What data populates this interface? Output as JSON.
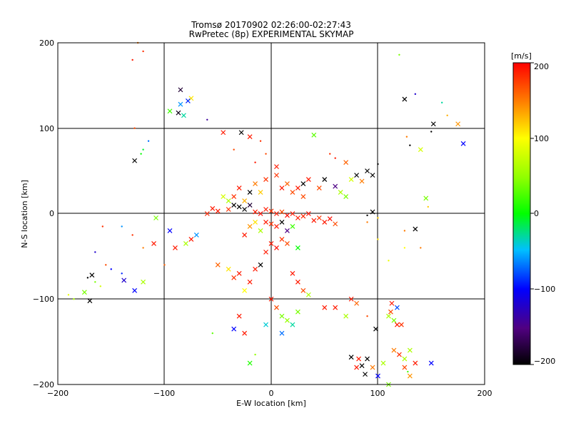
{
  "chart_data": {
    "type": "scatter",
    "title": "Tromsø 20170902 02:26:00-02:27:43",
    "subtitle": "RwPretec (8p) EXPERIMENTAL SKYMAP",
    "xlabel": "E-W location [km]",
    "ylabel": "N-S location [km]",
    "xlim": [
      -200,
      200
    ],
    "ylim": [
      -200,
      200
    ],
    "xticks": [
      "−200",
      "−100",
      "0",
      "100",
      "200"
    ],
    "yticks": [
      "−200",
      "−100",
      "0",
      "100",
      "200"
    ],
    "grid": true,
    "colorbar": {
      "label": "[m/s]",
      "range": [
        -200,
        200
      ],
      "ticks": [
        "200",
        "100",
        "0",
        "−100",
        "−200"
      ],
      "colormap": "black-purple-blue-cyan-green-yellow-orange-red"
    },
    "marker_note": "x markers = strong echoes, dots = weak echoes, colored by line-of-sight velocity",
    "points": [
      [
        -85,
        145,
        -180,
        "x"
      ],
      [
        -87,
        118,
        -190,
        "x"
      ],
      [
        -85,
        128,
        -60,
        "x"
      ],
      [
        -82,
        115,
        -30,
        "x"
      ],
      [
        -75,
        135,
        110,
        "x"
      ],
      [
        -95,
        120,
        20,
        "x"
      ],
      [
        -78,
        132,
        -90,
        "x"
      ],
      [
        -60,
        110,
        -140,
        "d"
      ],
      [
        -128,
        62,
        -200,
        "x"
      ],
      [
        -125,
        200,
        150,
        "d"
      ],
      [
        -120,
        190,
        180,
        "d"
      ],
      [
        -130,
        180,
        190,
        "d"
      ],
      [
        -122,
        70,
        0,
        "d"
      ],
      [
        -120,
        75,
        -10,
        "d"
      ],
      [
        -115,
        85,
        -70,
        "d"
      ],
      [
        125,
        134,
        -200,
        "x"
      ],
      [
        135,
        140,
        -120,
        "d"
      ],
      [
        152,
        105,
        -200,
        "x"
      ],
      [
        150,
        96,
        -200,
        "d"
      ],
      [
        160,
        130,
        -30,
        "d"
      ],
      [
        165,
        115,
        130,
        "d"
      ],
      [
        175,
        105,
        140,
        "x"
      ],
      [
        180,
        82,
        -100,
        "x"
      ],
      [
        120,
        186,
        40,
        "d"
      ],
      [
        127,
        90,
        150,
        "d"
      ],
      [
        130,
        80,
        -200,
        "d"
      ],
      [
        140,
        75,
        80,
        "x"
      ],
      [
        145,
        18,
        40,
        "x"
      ],
      [
        147,
        8,
        120,
        "d"
      ],
      [
        125,
        -20,
        150,
        "d"
      ],
      [
        135,
        -18,
        -200,
        "x"
      ],
      [
        -45,
        95,
        190,
        "x"
      ],
      [
        -28,
        95,
        -200,
        "x"
      ],
      [
        -20,
        90,
        190,
        "x"
      ],
      [
        -10,
        85,
        180,
        "d"
      ],
      [
        -5,
        70,
        170,
        "d"
      ],
      [
        -35,
        75,
        170,
        "d"
      ],
      [
        -15,
        60,
        190,
        "d"
      ],
      [
        5,
        55,
        190,
        "x"
      ],
      [
        40,
        92,
        30,
        "x"
      ],
      [
        55,
        70,
        180,
        "d"
      ],
      [
        60,
        65,
        190,
        "d"
      ],
      [
        70,
        60,
        160,
        "x"
      ],
      [
        80,
        45,
        -200,
        "x"
      ],
      [
        90,
        50,
        -200,
        "x"
      ],
      [
        95,
        45,
        -200,
        "x"
      ],
      [
        100,
        58,
        -200,
        "d"
      ],
      [
        85,
        38,
        150,
        "x"
      ],
      [
        75,
        40,
        80,
        "x"
      ],
      [
        70,
        20,
        40,
        "x"
      ],
      [
        65,
        25,
        60,
        "x"
      ],
      [
        50,
        40,
        -200,
        "x"
      ],
      [
        60,
        32,
        -150,
        "x"
      ],
      [
        45,
        30,
        170,
        "x"
      ],
      [
        30,
        20,
        170,
        "x"
      ],
      [
        -35,
        10,
        -200,
        "x"
      ],
      [
        -30,
        8,
        -200,
        "x"
      ],
      [
        -25,
        5,
        -200,
        "x"
      ],
      [
        -20,
        10,
        -180,
        "x"
      ],
      [
        -40,
        5,
        180,
        "x"
      ],
      [
        -50,
        3,
        190,
        "x"
      ],
      [
        -55,
        6,
        190,
        "x"
      ],
      [
        -60,
        0,
        185,
        "x"
      ],
      [
        -15,
        2,
        190,
        "x"
      ],
      [
        -10,
        0,
        195,
        "x"
      ],
      [
        -5,
        5,
        190,
        "x"
      ],
      [
        0,
        3,
        180,
        "x"
      ],
      [
        5,
        0,
        190,
        "x"
      ],
      [
        10,
        2,
        170,
        "x"
      ],
      [
        15,
        -2,
        195,
        "x"
      ],
      [
        20,
        0,
        190,
        "x"
      ],
      [
        25,
        -5,
        190,
        "x"
      ],
      [
        30,
        -3,
        185,
        "x"
      ],
      [
        35,
        0,
        195,
        "x"
      ],
      [
        40,
        -8,
        190,
        "x"
      ],
      [
        45,
        -5,
        180,
        "x"
      ],
      [
        50,
        -10,
        190,
        "x"
      ],
      [
        55,
        -6,
        195,
        "x"
      ],
      [
        60,
        -12,
        170,
        "x"
      ],
      [
        -5,
        -10,
        190,
        "x"
      ],
      [
        0,
        -12,
        180,
        "x"
      ],
      [
        5,
        -15,
        190,
        "x"
      ],
      [
        10,
        -10,
        -200,
        "x"
      ],
      [
        15,
        -20,
        -150,
        "x"
      ],
      [
        20,
        -15,
        20,
        "x"
      ],
      [
        -10,
        -20,
        60,
        "x"
      ],
      [
        -15,
        -10,
        110,
        "x"
      ],
      [
        -20,
        -15,
        140,
        "x"
      ],
      [
        -25,
        -25,
        190,
        "x"
      ],
      [
        0,
        -35,
        190,
        "x"
      ],
      [
        5,
        -40,
        195,
        "x"
      ],
      [
        10,
        -30,
        180,
        "x"
      ],
      [
        15,
        -35,
        170,
        "x"
      ],
      [
        -5,
        -45,
        190,
        "x"
      ],
      [
        25,
        -40,
        0,
        "x"
      ],
      [
        -30,
        -70,
        190,
        "x"
      ],
      [
        -35,
        -75,
        180,
        "x"
      ],
      [
        -40,
        -65,
        110,
        "x"
      ],
      [
        -50,
        -60,
        160,
        "x"
      ],
      [
        -10,
        -60,
        -200,
        "x"
      ],
      [
        -15,
        -65,
        190,
        "x"
      ],
      [
        -20,
        -80,
        190,
        "x"
      ],
      [
        -25,
        -90,
        100,
        "x"
      ],
      [
        20,
        -70,
        190,
        "x"
      ],
      [
        25,
        -80,
        190,
        "x"
      ],
      [
        30,
        -90,
        170,
        "x"
      ],
      [
        35,
        -95,
        60,
        "x"
      ],
      [
        0,
        -100,
        190,
        "x"
      ],
      [
        5,
        -110,
        170,
        "x"
      ],
      [
        10,
        -120,
        40,
        "x"
      ],
      [
        15,
        -125,
        50,
        "x"
      ],
      [
        20,
        -130,
        -30,
        "x"
      ],
      [
        25,
        -115,
        40,
        "x"
      ],
      [
        -5,
        -130,
        -40,
        "x"
      ],
      [
        10,
        -140,
        -70,
        "x"
      ],
      [
        -25,
        -140,
        190,
        "x"
      ],
      [
        -30,
        -120,
        190,
        "x"
      ],
      [
        -15,
        -165,
        50,
        "d"
      ],
      [
        -35,
        -135,
        -100,
        "x"
      ],
      [
        -55,
        -140,
        30,
        "d"
      ],
      [
        -20,
        -175,
        10,
        "x"
      ],
      [
        50,
        -110,
        190,
        "x"
      ],
      [
        60,
        -110,
        190,
        "x"
      ],
      [
        70,
        -120,
        60,
        "x"
      ],
      [
        75,
        -100,
        190,
        "x"
      ],
      [
        80,
        -105,
        160,
        "x"
      ],
      [
        90,
        -120,
        170,
        "d"
      ],
      [
        98,
        -135,
        -200,
        "x"
      ],
      [
        110,
        -120,
        60,
        "x"
      ],
      [
        115,
        -125,
        40,
        "x"
      ],
      [
        118,
        -130,
        190,
        "x"
      ],
      [
        122,
        -130,
        180,
        "x"
      ],
      [
        113,
        -105,
        190,
        "x"
      ],
      [
        118,
        -110,
        -80,
        "x"
      ],
      [
        112,
        -115,
        170,
        "x"
      ],
      [
        115,
        -160,
        150,
        "x"
      ],
      [
        120,
        -165,
        180,
        "x"
      ],
      [
        125,
        -170,
        60,
        "x"
      ],
      [
        130,
        -160,
        60,
        "x"
      ],
      [
        125,
        -180,
        170,
        "x"
      ],
      [
        130,
        -190,
        140,
        "x"
      ],
      [
        135,
        -175,
        190,
        "x"
      ],
      [
        128,
        -185,
        20,
        "d"
      ],
      [
        100,
        -190,
        -100,
        "x"
      ],
      [
        105,
        -175,
        60,
        "x"
      ],
      [
        110,
        -200,
        40,
        "x"
      ],
      [
        150,
        -175,
        -100,
        "x"
      ],
      [
        75,
        -168,
        -200,
        "x"
      ],
      [
        85,
        -178,
        -200,
        "x"
      ],
      [
        90,
        -170,
        -200,
        "x"
      ],
      [
        88,
        -188,
        -200,
        "x"
      ],
      [
        95,
        -180,
        150,
        "x"
      ],
      [
        80,
        -180,
        190,
        "x"
      ],
      [
        82,
        -170,
        190,
        "x"
      ],
      [
        -170,
        -102,
        -200,
        "x"
      ],
      [
        -168,
        -72,
        -200,
        "x"
      ],
      [
        -172,
        -75,
        -200,
        "d"
      ],
      [
        -165,
        -80,
        40,
        "d"
      ],
      [
        -160,
        -85,
        80,
        "d"
      ],
      [
        -175,
        -92,
        40,
        "x"
      ],
      [
        -185,
        -100,
        60,
        "d"
      ],
      [
        -190,
        -95,
        90,
        "d"
      ],
      [
        -155,
        -60,
        170,
        "d"
      ],
      [
        -150,
        -65,
        -100,
        "d"
      ],
      [
        -140,
        -70,
        -90,
        "d"
      ],
      [
        -138,
        -78,
        -120,
        "x"
      ],
      [
        -128,
        -90,
        -100,
        "x"
      ],
      [
        -120,
        -80,
        60,
        "x"
      ],
      [
        -130,
        -25,
        180,
        "d"
      ],
      [
        -120,
        -40,
        150,
        "d"
      ],
      [
        -108,
        -5,
        40,
        "x"
      ],
      [
        -110,
        -35,
        190,
        "x"
      ],
      [
        -100,
        -60,
        160,
        "d"
      ],
      [
        -95,
        -20,
        -100,
        "x"
      ],
      [
        -90,
        -40,
        190,
        "x"
      ],
      [
        -80,
        -35,
        60,
        "x"
      ],
      [
        -75,
        -30,
        190,
        "x"
      ],
      [
        -70,
        -25,
        -60,
        "x"
      ],
      [
        -165,
        -45,
        -120,
        "d"
      ],
      [
        -158,
        -15,
        180,
        "d"
      ],
      [
        -140,
        -15,
        -60,
        "d"
      ],
      [
        -128,
        100,
        170,
        "d"
      ],
      [
        140,
        -40,
        150,
        "d"
      ],
      [
        125,
        -40,
        100,
        "d"
      ],
      [
        110,
        -55,
        90,
        "d"
      ],
      [
        100,
        -30,
        110,
        "d"
      ],
      [
        90,
        -10,
        150,
        "d"
      ],
      [
        100,
        -5,
        120,
        "d"
      ],
      [
        95,
        2,
        -200,
        "x"
      ],
      [
        90,
        -2,
        -200,
        "d"
      ],
      [
        -5,
        40,
        180,
        "x"
      ],
      [
        5,
        45,
        180,
        "x"
      ],
      [
        10,
        30,
        190,
        "x"
      ],
      [
        15,
        35,
        160,
        "x"
      ],
      [
        -10,
        25,
        120,
        "x"
      ],
      [
        -15,
        35,
        150,
        "x"
      ],
      [
        20,
        25,
        170,
        "x"
      ],
      [
        25,
        30,
        190,
        "x"
      ],
      [
        30,
        35,
        -200,
        "x"
      ],
      [
        35,
        40,
        190,
        "x"
      ],
      [
        -30,
        30,
        190,
        "x"
      ],
      [
        -35,
        20,
        180,
        "x"
      ],
      [
        -45,
        20,
        80,
        "x"
      ],
      [
        -40,
        15,
        60,
        "x"
      ],
      [
        -25,
        15,
        130,
        "x"
      ],
      [
        -20,
        25,
        -200,
        "x"
      ]
    ]
  }
}
